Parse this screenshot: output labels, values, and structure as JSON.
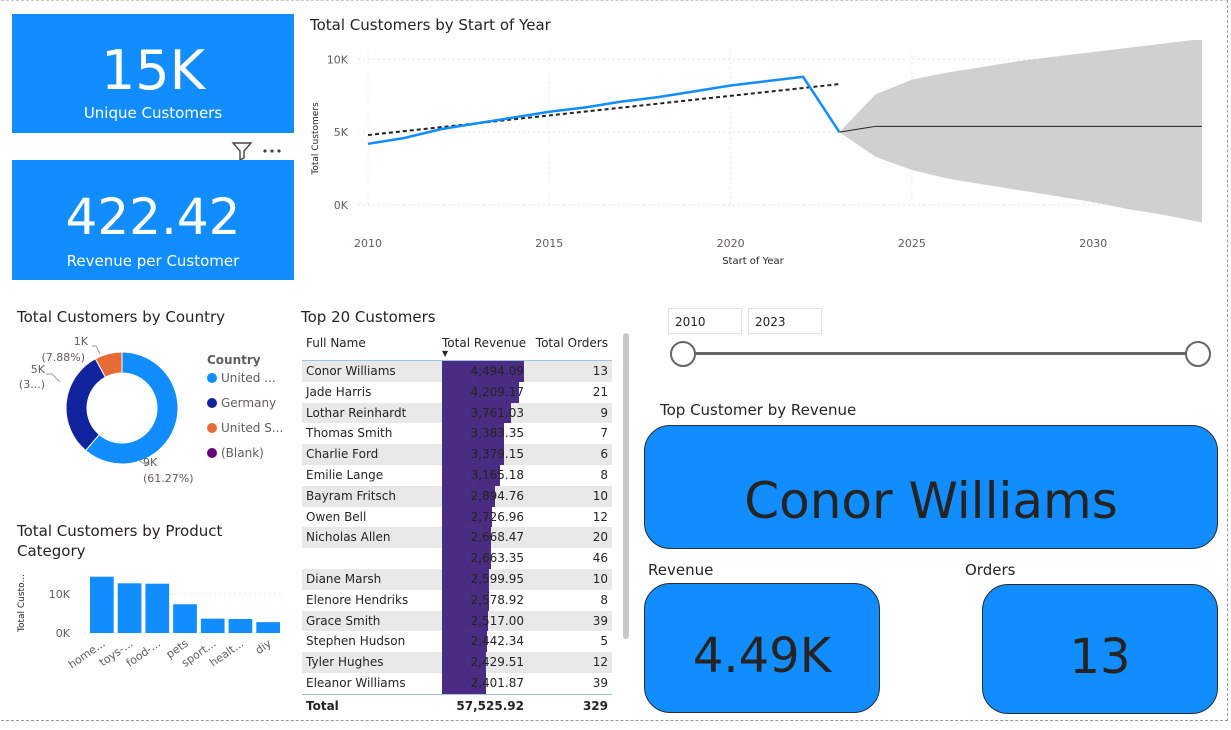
{
  "kpi_customers": {
    "value": "15K",
    "label": "Unique Customers"
  },
  "kpi_revenue": {
    "value": "422.42",
    "label": "Revenue per Customer"
  },
  "line_chart": {
    "title": "Total Customers by Start of Year",
    "chart_data": {
      "type": "line",
      "xlabel": "Start of Year",
      "ylabel": "Total Customers",
      "y_ticks": [
        "0K",
        "5K",
        "10K"
      ],
      "x_ticks": [
        "2010",
        "2015",
        "2020",
        "2025",
        "2030"
      ],
      "xlim": [
        2010,
        2033
      ],
      "ylim": [
        0,
        10500
      ],
      "series": [
        {
          "x": [
            2010,
            2011,
            2012,
            2013,
            2014,
            2015,
            2016,
            2017,
            2018,
            2019,
            2020,
            2021,
            2022,
            2023
          ],
          "values": [
            4200,
            4600,
            5200,
            5600,
            6000,
            6400,
            6700,
            7100,
            7400,
            7800,
            8200,
            8500,
            8800,
            5000
          ]
        }
      ],
      "trend": {
        "x": [
          2010,
          2023
        ],
        "values": [
          4800,
          8300
        ]
      },
      "forecast": {
        "x": [
          2023,
          2024,
          2025,
          2026,
          2027,
          2028,
          2029,
          2030,
          2031,
          2032,
          2033
        ],
        "values": [
          5000,
          5400,
          5400,
          5400,
          5400,
          5400,
          5400,
          5400,
          5400,
          5400,
          5400
        ],
        "upper": [
          5000,
          7600,
          8600,
          9100,
          9500,
          9900,
          10200,
          10500,
          10800,
          11100,
          11400
        ],
        "lower": [
          5000,
          3300,
          2400,
          1800,
          1400,
          1000,
          600,
          200,
          -300,
          -700,
          -1200
        ]
      }
    }
  },
  "donut_chart": {
    "title": "Total Customers by Country",
    "legend_title": "Country",
    "chart_data": {
      "type": "pie",
      "categories": [
        "United ...",
        "Germany",
        "United S...",
        "(Blank)"
      ],
      "values": [
        61.27,
        30.85,
        7.88,
        0.0
      ],
      "colors": [
        "#118dff",
        "#12239e",
        "#e66c37",
        "#6b007b"
      ],
      "labels": [
        {
          "value": "9K",
          "pct": "(61.27%)"
        },
        {
          "value": "5K",
          "pct": "(3...)"
        },
        {
          "value": "1K",
          "pct": "(7.88%)"
        }
      ]
    }
  },
  "bar_chart": {
    "title_line1": "Total Customers by Product",
    "title_line2": "Category",
    "chart_data": {
      "type": "bar",
      "ylabel": "Total Custo...",
      "y_ticks": [
        "0K",
        "10K"
      ],
      "categories": [
        "home...",
        "toys-...",
        "food-...",
        "pets",
        "sport...",
        "healt...",
        "diy"
      ],
      "values": [
        14500,
        12800,
        12700,
        7400,
        3700,
        3600,
        2800
      ],
      "ylim": [
        0,
        17000
      ]
    }
  },
  "table": {
    "title": "Top 20 Customers",
    "headers": {
      "name": "Full Name",
      "revenue": "Total Revenue",
      "orders": "Total Orders"
    },
    "rows": [
      {
        "name": "Conor Williams",
        "revenue": "4,494.09",
        "orders": "13",
        "rv": 4494.09
      },
      {
        "name": "Jade Harris",
        "revenue": "4,209.17",
        "orders": "21",
        "rv": 4209.17
      },
      {
        "name": "Lothar Reinhardt",
        "revenue": "3,761.03",
        "orders": "9",
        "rv": 3761.03
      },
      {
        "name": "Thomas Smith",
        "revenue": "3,383.35",
        "orders": "7",
        "rv": 3383.35
      },
      {
        "name": "Charlie Ford",
        "revenue": "3,379.15",
        "orders": "6",
        "rv": 3379.15
      },
      {
        "name": "Emilie Lange",
        "revenue": "3,165.18",
        "orders": "8",
        "rv": 3165.18
      },
      {
        "name": "Bayram Fritsch",
        "revenue": "2,894.76",
        "orders": "10",
        "rv": 2894.76
      },
      {
        "name": "Owen Bell",
        "revenue": "2,726.96",
        "orders": "12",
        "rv": 2726.96
      },
      {
        "name": "Nicholas Allen",
        "revenue": "2,668.47",
        "orders": "20",
        "rv": 2668.47
      },
      {
        "name": "",
        "revenue": "2,663.35",
        "orders": "46",
        "rv": 2663.35
      },
      {
        "name": "Diane Marsh",
        "revenue": "2,599.95",
        "orders": "10",
        "rv": 2599.95
      },
      {
        "name": "Elenore Hendriks",
        "revenue": "2,578.92",
        "orders": "8",
        "rv": 2578.92
      },
      {
        "name": "Grace Smith",
        "revenue": "2,517.00",
        "orders": "39",
        "rv": 2517.0
      },
      {
        "name": "Stephen Hudson",
        "revenue": "2,442.34",
        "orders": "5",
        "rv": 2442.34
      },
      {
        "name": "Tyler Hughes",
        "revenue": "2,429.51",
        "orders": "12",
        "rv": 2429.51
      },
      {
        "name": "Eleanor Williams",
        "revenue": "2,401.87",
        "orders": "39",
        "rv": 2401.87
      }
    ],
    "total": {
      "label": "Total",
      "revenue": "57,525.92",
      "orders": "329"
    }
  },
  "slicer": {
    "start": "2010",
    "end": "2023"
  },
  "top_customer": {
    "title": "Top Customer by Revenue",
    "value": "Conor Williams"
  },
  "revenue_card": {
    "title": "Revenue",
    "value": "4.49K"
  },
  "orders_card": {
    "title": "Orders",
    "value": "13"
  },
  "colors": {
    "accent": "#118dff",
    "bar": "#4a2c82"
  }
}
